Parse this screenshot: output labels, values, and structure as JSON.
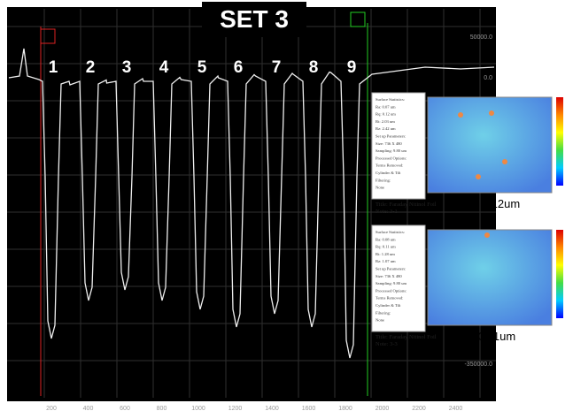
{
  "title": "SET 3",
  "trench_labels": [
    "1",
    "2",
    "3",
    "4",
    "5",
    "6",
    "7",
    "8",
    "9"
  ],
  "y_axis_labels": [
    "50000.0",
    "0.0",
    "-350000.0"
  ],
  "x_axis_labels": [
    "200",
    "400",
    "600",
    "800",
    "1000",
    "1200",
    "1400",
    "1600",
    "1800",
    "2000",
    "2200",
    "2400"
  ],
  "insets": [
    {
      "stats": [
        "Surface Statistics:",
        "Ra: 0.07 um",
        "Rq: 0.12 um",
        "Rt: 2.03 um",
        "Rz: 2.42 um",
        "Set up Parameters:",
        "Size: 736 X 480",
        "Sampling: 9.80 um",
        "Processed Options:",
        "Terms Removed:",
        "Cylinder & Tilt",
        "Filtering:",
        "None"
      ],
      "title": "Title:  Faraday Nitinol Foil",
      "note": "Note:  3-1",
      "rq": "Rq= 0.12um"
    },
    {
      "stats": [
        "Surface Statistics:",
        "Ra: 0.08 um",
        "Rq: 0.11 um",
        "Rt: 1.28 um",
        "Rz: 1.07 um",
        "Set up Parameters:",
        "Size: 736 X 480",
        "Sampling: 9.80 um",
        "Processed Options:",
        "Terms Removed:",
        "Cylinder & Tilt",
        "Filtering:",
        "None"
      ],
      "title": "Title:  Faraday Nitinol Foil",
      "note": "Note:  3-3",
      "rq": "Rq= 0.11um"
    }
  ]
}
